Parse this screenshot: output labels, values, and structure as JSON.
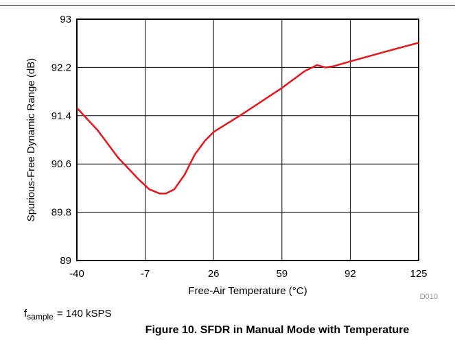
{
  "chart_data": {
    "type": "line",
    "title": "Figure 10. SFDR in Manual Mode with Temperature",
    "xlabel": "Free-Air Temperature (°C)",
    "ylabel": "Spurious-Free Dynamic Range (dB)",
    "figure_id": "D010",
    "annotation": {
      "symbol": "f",
      "subscript": "sample",
      "text": "= 140 kSPS"
    },
    "x": [
      -40,
      -30,
      -20,
      -10,
      -5,
      0,
      3,
      7,
      12,
      17,
      22,
      26,
      40,
      59,
      70,
      76,
      80,
      84,
      92,
      110,
      125
    ],
    "series": [
      {
        "name": "SFDR",
        "color": "#e8141c",
        "values": [
          91.53,
          91.16,
          90.7,
          90.34,
          90.18,
          90.11,
          90.11,
          90.18,
          90.42,
          90.76,
          90.99,
          91.13,
          91.43,
          91.86,
          92.14,
          92.24,
          92.2,
          92.22,
          92.3,
          92.47,
          92.61
        ]
      }
    ],
    "xlim": [
      -40,
      125
    ],
    "xticks": [
      -40,
      -7,
      26,
      59,
      92,
      125
    ],
    "ylim": [
      89,
      93
    ],
    "yticks": [
      89,
      89.8,
      90.6,
      91.4,
      92.2,
      93
    ],
    "grid": true
  }
}
